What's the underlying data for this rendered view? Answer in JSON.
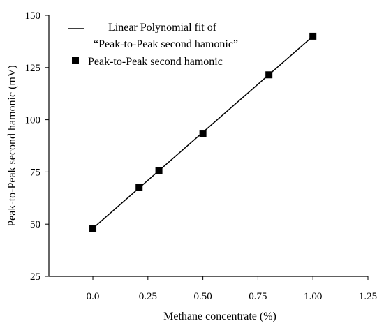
{
  "chart_data": {
    "type": "scatter",
    "xlabel": "Methane concentrate (%)",
    "ylabel": "Peak-to-Peak second hamonic (mV)",
    "xlim": [
      -0.2,
      1.25
    ],
    "ylim": [
      25,
      150
    ],
    "x_ticks": [
      0.0,
      0.25,
      0.5,
      0.75,
      1.0,
      1.25
    ],
    "x_tick_labels": [
      "0.0",
      "0.25",
      "0.50",
      "0.75",
      "1.00",
      "1.25"
    ],
    "y_ticks": [
      25,
      50,
      75,
      100,
      125,
      150
    ],
    "y_tick_labels": [
      "25",
      "50",
      "75",
      "100",
      "125",
      "150"
    ],
    "series": [
      {
        "name": "Peak-to-Peak second hamonic",
        "marker": "square",
        "x": [
          0.0,
          0.21,
          0.3,
          0.5,
          0.8,
          1.0
        ],
        "y": [
          48,
          67.5,
          75.5,
          93.5,
          121.5,
          140
        ]
      },
      {
        "name": "Linear Polynomial fit of “Peak-to-Peak second hamonic”",
        "line": true,
        "x": [
          0.0,
          1.0
        ],
        "y": [
          48,
          140
        ]
      }
    ],
    "legend": {
      "position": "top",
      "fit_line1": "Linear Polynomial fit of",
      "fit_line2": "“Peak-to-Peak second hamonic”",
      "points_label": "Peak-to-Peak second hamonic"
    },
    "colors": {
      "line": "#000000",
      "marker": "#000000"
    }
  }
}
